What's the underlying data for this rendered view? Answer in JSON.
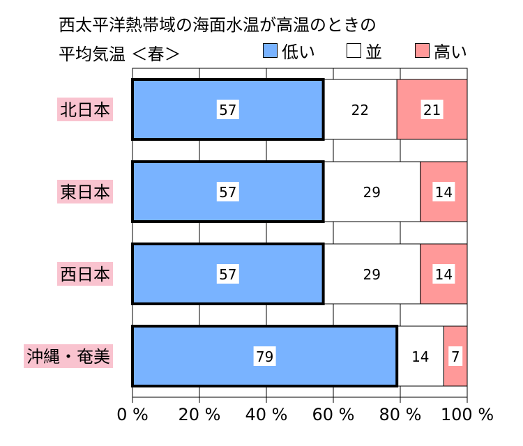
{
  "chart_data": {
    "type": "bar",
    "orientation": "horizontal",
    "stacked": true,
    "title": "西太平洋熱帯域の海面水温が高温のときの",
    "subtitle": "平均気温 ＜春＞",
    "categories": [
      "北日本",
      "東日本",
      "西日本",
      "沖縄・奄美"
    ],
    "series": [
      {
        "name": "低い",
        "color": "#79b3ff",
        "values": [
          57,
          57,
          57,
          79
        ]
      },
      {
        "name": "並",
        "color": "#ffffff",
        "values": [
          22,
          29,
          29,
          14
        ]
      },
      {
        "name": "高い",
        "color": "#ff9999",
        "values": [
          21,
          14,
          14,
          7
        ]
      }
    ],
    "xlim": [
      0,
      100
    ],
    "x_ticks": [
      "0 %",
      "20 %",
      "40 %",
      "60 %",
      "80 %",
      "100 %"
    ],
    "grid": true,
    "legend_placement": "top-right",
    "category_label_bg": "#f9c3cf"
  }
}
